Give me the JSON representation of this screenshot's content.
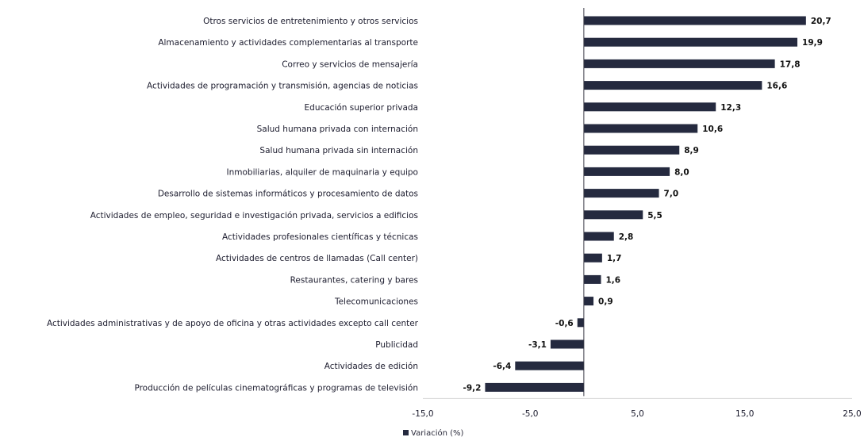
{
  "chart_data": {
    "type": "bar",
    "orientation": "horizontal",
    "categories": [
      "Otros servicios de entretenimiento y otros servicios",
      "Almacenamiento y actividades complementarias al transporte",
      "Correo y servicios de mensajería",
      "Actividades de programación y transmisión, agencias de noticias",
      "Educación superior privada",
      "Salud humana privada con internación",
      "Salud humana privada sin internación",
      "Inmobiliarias, alquiler de maquinaria y equipo",
      "Desarrollo de sistemas informáticos y procesamiento de datos",
      "Actividades de empleo, seguridad e investigación privada, servicios a edificios",
      "Actividades profesionales científicas y técnicas",
      "Actividades de centros de llamadas (Call center)",
      "Restaurantes, catering y bares",
      "Telecomunicaciones",
      "Actividades administrativas y de apoyo de oficina y otras actividades excepto call center",
      "Publicidad",
      "Actividades de edición",
      "Producción de películas cinematográficas y programas de televisión"
    ],
    "series": [
      {
        "name": "Variación (%)",
        "values": [
          20.7,
          19.9,
          17.8,
          16.6,
          12.3,
          10.6,
          8.9,
          8.0,
          7.0,
          5.5,
          2.8,
          1.7,
          1.6,
          0.9,
          -0.6,
          -3.1,
          -6.4,
          -9.2
        ],
        "labels": [
          "20,7",
          "19,9",
          "17,8",
          "16,6",
          "12,3",
          "10,6",
          "8,9",
          "8,0",
          "7,0",
          "5,5",
          "2,8",
          "1,7",
          "1,6",
          "0,9",
          "-0,6",
          "-3,1",
          "-6,4",
          "-9,2"
        ]
      }
    ],
    "x_ticks": [
      -15,
      -5,
      5,
      15,
      25
    ],
    "x_tick_labels": [
      "-15,0",
      "-5,0",
      "5,0",
      "15,0",
      "25,0"
    ],
    "xlim": [
      -15,
      25
    ],
    "title": "",
    "xlabel": "",
    "ylabel": "",
    "grid": false,
    "legend_position": "bottom-left",
    "bar_color": "#252a3f"
  }
}
